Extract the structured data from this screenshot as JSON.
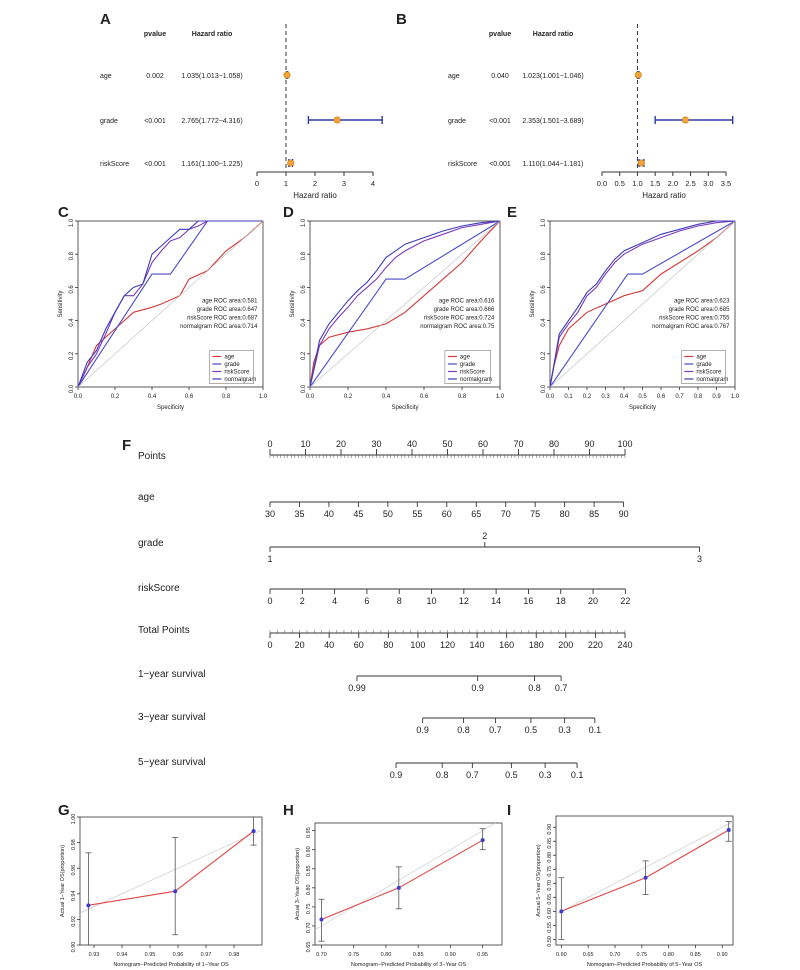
{
  "panel_labels": [
    "A",
    "B",
    "C",
    "D",
    "E",
    "F",
    "G",
    "H",
    "I"
  ],
  "chart_data": [
    {
      "panel": "A",
      "type": "forest",
      "col_headers": {
        "pvalue": "pvalue",
        "hr": "Hazard ratio"
      },
      "rows": [
        {
          "name": "age",
          "pvalue": "0.002",
          "hr_text": "1.035(1.013−1.058)",
          "hr": 1.035,
          "lo": 1.013,
          "hi": 1.058
        },
        {
          "name": "grade",
          "pvalue": "<0.001",
          "hr_text": "2.765(1.772−4.316)",
          "hr": 2.765,
          "lo": 1.772,
          "hi": 4.316
        },
        {
          "name": "riskScore",
          "pvalue": "<0.001",
          "hr_text": "1.161(1.100−1.225)",
          "hr": 1.161,
          "lo": 1.1,
          "hi": 1.225
        }
      ],
      "xlim": [
        0,
        4
      ],
      "ticks": [
        "0",
        "1",
        "2",
        "3",
        "4"
      ],
      "reference": 1,
      "xlabel": "Hazard ratio"
    },
    {
      "panel": "B",
      "type": "forest",
      "col_headers": {
        "pvalue": "pvalue",
        "hr": "Hazard ratio"
      },
      "rows": [
        {
          "name": "age",
          "pvalue": "0.040",
          "hr_text": "1.023(1.001−1.046)",
          "hr": 1.023,
          "lo": 1.001,
          "hi": 1.046
        },
        {
          "name": "grade",
          "pvalue": "<0.001",
          "hr_text": "2.353(1.501−3.689)",
          "hr": 2.353,
          "lo": 1.501,
          "hi": 3.689
        },
        {
          "name": "riskScore",
          "pvalue": "<0.001",
          "hr_text": "1.110(1.044−1.181)",
          "hr": 1.11,
          "lo": 1.044,
          "hi": 1.181
        }
      ],
      "xlim": [
        0,
        3.5
      ],
      "ticks": [
        "0.0",
        "0.5",
        "1.0",
        "1.5",
        "2.0",
        "2.5",
        "3.0",
        "3.5"
      ],
      "reference": 1,
      "xlabel": "Hazard ratio"
    },
    {
      "panel": "C",
      "type": "line",
      "xlabel": "Specificity",
      "ylabel": "Sensitivity",
      "ticks": [
        "0.0",
        "0.2",
        "0.4",
        "0.6",
        "0.8",
        "1.0"
      ],
      "annotations": [
        "age ROC area:0.581",
        "grade ROC area:0.647",
        "riskScore ROC area:0.687",
        "normalgram ROC area:0.714"
      ],
      "legend": [
        "age",
        "grade",
        "riskScore",
        "normalgram"
      ],
      "series": [
        {
          "name": "age",
          "color": "#d03a3a",
          "x": [
            0,
            0.05,
            0.1,
            0.2,
            0.3,
            0.4,
            0.45,
            0.55,
            0.6,
            0.7,
            0.8,
            0.9,
            0.95,
            1
          ],
          "y": [
            0,
            0.12,
            0.25,
            0.35,
            0.45,
            0.48,
            0.5,
            0.55,
            0.65,
            0.7,
            0.82,
            0.9,
            0.95,
            1
          ]
        },
        {
          "name": "grade",
          "color": "#4a4ac9",
          "x": [
            0,
            0.4,
            0.5,
            0.7,
            1
          ],
          "y": [
            0,
            0.68,
            0.68,
            1,
            1
          ]
        },
        {
          "name": "riskScore",
          "color": "#7a3bbd",
          "x": [
            0,
            0.05,
            0.1,
            0.15,
            0.2,
            0.25,
            0.3,
            0.35,
            0.4,
            0.45,
            0.5,
            0.55,
            0.6,
            0.65,
            0.7,
            0.8,
            1
          ],
          "y": [
            0,
            0.12,
            0.2,
            0.32,
            0.45,
            0.55,
            0.55,
            0.62,
            0.75,
            0.82,
            0.88,
            0.9,
            0.95,
            0.97,
            1,
            1,
            1
          ]
        },
        {
          "name": "normalgram",
          "color": "#3d3db8",
          "x": [
            0,
            0.05,
            0.1,
            0.15,
            0.2,
            0.25,
            0.3,
            0.35,
            0.4,
            0.45,
            0.5,
            0.55,
            0.6,
            0.65,
            0.7,
            0.75,
            1
          ],
          "y": [
            0,
            0.15,
            0.22,
            0.35,
            0.45,
            0.55,
            0.6,
            0.62,
            0.8,
            0.85,
            0.9,
            0.95,
            0.95,
            1,
            1,
            1,
            1
          ]
        },
        {
          "name": "reference",
          "color": "#bbbbbb",
          "x": [
            0,
            1
          ],
          "y": [
            0,
            1
          ]
        }
      ]
    },
    {
      "panel": "D",
      "type": "line",
      "xlabel": "Specificity",
      "ylabel": "Sensitivity",
      "ticks": [
        "0.0",
        "0.2",
        "0.4",
        "0.6",
        "0.8",
        "1.0"
      ],
      "annotations": [
        "age ROC area:0.616",
        "grade ROC area:0.666",
        "riskScore ROC area:0.724",
        "normalgram ROC area:0.75"
      ],
      "legend": [
        "age",
        "grade",
        "riskScore",
        "normalgram"
      ],
      "series": [
        {
          "name": "age",
          "color": "#d03a3a",
          "x": [
            0,
            0.02,
            0.05,
            0.1,
            0.2,
            0.3,
            0.4,
            0.5,
            0.6,
            0.65,
            0.7,
            0.8,
            0.9,
            1
          ],
          "y": [
            0,
            0.15,
            0.25,
            0.3,
            0.33,
            0.35,
            0.38,
            0.45,
            0.55,
            0.6,
            0.65,
            0.75,
            0.88,
            1
          ]
        },
        {
          "name": "grade",
          "color": "#4a4ac9",
          "x": [
            0,
            0.4,
            0.5,
            1
          ],
          "y": [
            0,
            0.65,
            0.65,
            1
          ]
        },
        {
          "name": "riskScore",
          "color": "#7a3bbd",
          "x": [
            0,
            0.05,
            0.1,
            0.15,
            0.2,
            0.25,
            0.3,
            0.35,
            0.4,
            0.45,
            0.5,
            0.6,
            0.7,
            0.8,
            0.9,
            1
          ],
          "y": [
            0,
            0.25,
            0.35,
            0.42,
            0.48,
            0.55,
            0.6,
            0.65,
            0.72,
            0.78,
            0.82,
            0.88,
            0.92,
            0.96,
            0.98,
            1
          ]
        },
        {
          "name": "normalgram",
          "color": "#3d3db8",
          "x": [
            0,
            0.05,
            0.1,
            0.15,
            0.2,
            0.25,
            0.3,
            0.35,
            0.4,
            0.45,
            0.5,
            0.6,
            0.7,
            0.8,
            0.9,
            1
          ],
          "y": [
            0,
            0.28,
            0.38,
            0.45,
            0.52,
            0.58,
            0.63,
            0.7,
            0.78,
            0.82,
            0.86,
            0.9,
            0.94,
            0.97,
            0.99,
            1
          ]
        },
        {
          "name": "reference",
          "color": "#bbbbbb",
          "x": [
            0,
            1
          ],
          "y": [
            0,
            1
          ]
        }
      ]
    },
    {
      "panel": "E",
      "type": "line",
      "xlabel": "Specificity",
      "ylabel": "Sensitivity",
      "ticks": [
        "0.0",
        "0.1",
        "0.2",
        "0.3",
        "0.4",
        "0.5",
        "0.6",
        "0.7",
        "0.8",
        "0.9",
        "1.0"
      ],
      "annotations": [
        "age ROC area:0.623",
        "grade ROC area:0.685",
        "riskScore ROC area:0.755",
        "normalgram ROC area:0.767"
      ],
      "legend": [
        "age",
        "grade",
        "riskScore",
        "normalgram"
      ],
      "series": [
        {
          "name": "age",
          "color": "#d03a3a",
          "x": [
            0,
            0.02,
            0.05,
            0.1,
            0.2,
            0.3,
            0.4,
            0.5,
            0.6,
            0.7,
            0.8,
            0.9,
            1
          ],
          "y": [
            0,
            0.12,
            0.25,
            0.35,
            0.45,
            0.5,
            0.55,
            0.58,
            0.68,
            0.75,
            0.82,
            0.9,
            1
          ]
        },
        {
          "name": "grade",
          "color": "#4a4ac9",
          "x": [
            0,
            0.42,
            0.5,
            1
          ],
          "y": [
            0,
            0.68,
            0.68,
            1
          ]
        },
        {
          "name": "riskScore",
          "color": "#7a3bbd",
          "x": [
            0,
            0.05,
            0.1,
            0.15,
            0.2,
            0.25,
            0.3,
            0.35,
            0.4,
            0.5,
            0.6,
            0.7,
            0.8,
            0.9,
            1
          ],
          "y": [
            0,
            0.3,
            0.38,
            0.45,
            0.55,
            0.6,
            0.68,
            0.75,
            0.8,
            0.86,
            0.9,
            0.94,
            0.97,
            0.99,
            1
          ]
        },
        {
          "name": "normalgram",
          "color": "#3d3db8",
          "x": [
            0,
            0.05,
            0.1,
            0.15,
            0.2,
            0.25,
            0.3,
            0.35,
            0.4,
            0.5,
            0.6,
            0.7,
            0.8,
            0.9,
            1
          ],
          "y": [
            0,
            0.32,
            0.4,
            0.48,
            0.57,
            0.62,
            0.7,
            0.77,
            0.82,
            0.87,
            0.92,
            0.95,
            0.98,
            1,
            1
          ]
        },
        {
          "name": "reference",
          "color": "#bbbbbb",
          "x": [
            0,
            1
          ],
          "y": [
            0,
            1
          ]
        }
      ]
    },
    {
      "panel": "F",
      "type": "nomogram",
      "scales": [
        {
          "name": "Points",
          "labels": [
            "0",
            "10",
            "20",
            "30",
            "40",
            "50",
            "60",
            "70",
            "80",
            "90",
            "100"
          ],
          "pos": [
            0,
            10,
            20,
            30,
            40,
            50,
            60,
            70,
            80,
            90,
            100
          ],
          "minor": 100
        },
        {
          "name": "age",
          "labels": [
            "30",
            "35",
            "40",
            "45",
            "50",
            "55",
            "60",
            "65",
            "70",
            "75",
            "80",
            "85",
            "90"
          ],
          "pos": [
            0,
            8.3,
            16.6,
            24.9,
            33.2,
            41.5,
            49.8,
            58.1,
            66.4,
            74.7,
            83,
            91.3,
            99.6
          ],
          "below": true
        },
        {
          "name": "grade",
          "labels": [
            "1",
            "2",
            "3"
          ],
          "pos": [
            0,
            60.5,
            121
          ],
          "above": [
            false,
            true,
            false
          ]
        },
        {
          "name": "riskScore",
          "labels": [
            "0",
            "2",
            "4",
            "6",
            "8",
            "10",
            "12",
            "14",
            "16",
            "18",
            "20",
            "22"
          ],
          "pos": [
            0,
            9.1,
            18.2,
            27.3,
            36.4,
            45.5,
            54.6,
            63.7,
            72.8,
            81.9,
            91,
            100.1
          ],
          "below": true
        },
        {
          "name": "Total Points",
          "labels": [
            "0",
            "20",
            "40",
            "60",
            "80",
            "100",
            "120",
            "140",
            "160",
            "180",
            "200",
            "220",
            "240"
          ],
          "pos": [
            0,
            8.33,
            16.67,
            25,
            33.33,
            41.67,
            50,
            58.33,
            66.67,
            75,
            83.33,
            91.67,
            100
          ],
          "below": true,
          "minor": 48
        },
        {
          "name": "1−year survival",
          "labels": [
            "0.99",
            "0.9",
            "0.8",
            "0.7"
          ],
          "pos": [
            24.5,
            58.5,
            74.5,
            82
          ],
          "below": true
        },
        {
          "name": "3−year survival",
          "labels": [
            "0.9",
            "0.8",
            "0.7",
            "0.5",
            "0.3",
            "0.1"
          ],
          "pos": [
            43,
            54.5,
            63.5,
            73.5,
            83,
            91.5
          ],
          "below": true
        },
        {
          "name": "5−year survival",
          "labels": [
            "0.9",
            "0.8",
            "0.7",
            "0.5",
            "0.3",
            "0.1"
          ],
          "pos": [
            35.5,
            48.5,
            57,
            68,
            77.5,
            86.5
          ],
          "below": true
        }
      ]
    },
    {
      "panel": "G",
      "type": "line",
      "xlabel": "Nomogram−Predicted Probability of 1−Year OS",
      "ylabel": "Actual 1−Year OS(proportion)",
      "xlim": [
        0.925,
        0.99
      ],
      "ylim": [
        0.9,
        1.0
      ],
      "xticks": [
        "0.93",
        "0.94",
        "0.95",
        "0.96",
        "0.97",
        "0.98"
      ],
      "yticks": [
        "0.90",
        "0.92",
        "0.94",
        "0.96",
        "0.98",
        "1.00"
      ],
      "x": [
        0.928,
        0.959,
        0.987
      ],
      "y": [
        0.931,
        0.942,
        0.989
      ],
      "lo": [
        0.9,
        0.908,
        0.978
      ],
      "hi": [
        0.972,
        0.984,
        1.0
      ]
    },
    {
      "panel": "H",
      "type": "line",
      "xlabel": "Nomogram−Predicted Probability of 3−Year OS",
      "ylabel": "Actual 3−Year OS(proportion)",
      "xlim": [
        0.69,
        0.98
      ],
      "ylim": [
        0.65,
        0.97
      ],
      "xticks": [
        "0.70",
        "0.75",
        "0.80",
        "0.85",
        "0.90",
        "0.95"
      ],
      "yticks": [
        "0.65",
        "0.70",
        "0.75",
        "0.80",
        "0.85",
        "0.90",
        "0.95"
      ],
      "x": [
        0.7,
        0.82,
        0.95
      ],
      "y": [
        0.717,
        0.8,
        0.925
      ],
      "lo": [
        0.66,
        0.745,
        0.9
      ],
      "hi": [
        0.77,
        0.855,
        0.955
      ]
    },
    {
      "panel": "I",
      "type": "line",
      "xlabel": "Nomogram−Predicted Probability of 5−Year OS",
      "ylabel": "Actual 5−Year OS(proportion)",
      "xlim": [
        0.59,
        0.92
      ],
      "ylim": [
        0.48,
        0.94
      ],
      "xticks": [
        "0.60",
        "0.65",
        "0.70",
        "0.75",
        "0.80",
        "0.85",
        "0.90"
      ],
      "yticks": [
        "0.50",
        "0.55",
        "0.60",
        "0.65",
        "0.70",
        "0.75",
        "0.80",
        "0.85",
        "0.90"
      ],
      "x": [
        0.6,
        0.757,
        0.912
      ],
      "y": [
        0.6,
        0.72,
        0.89
      ],
      "lo": [
        0.5,
        0.66,
        0.85
      ],
      "hi": [
        0.72,
        0.78,
        0.92
      ]
    }
  ]
}
